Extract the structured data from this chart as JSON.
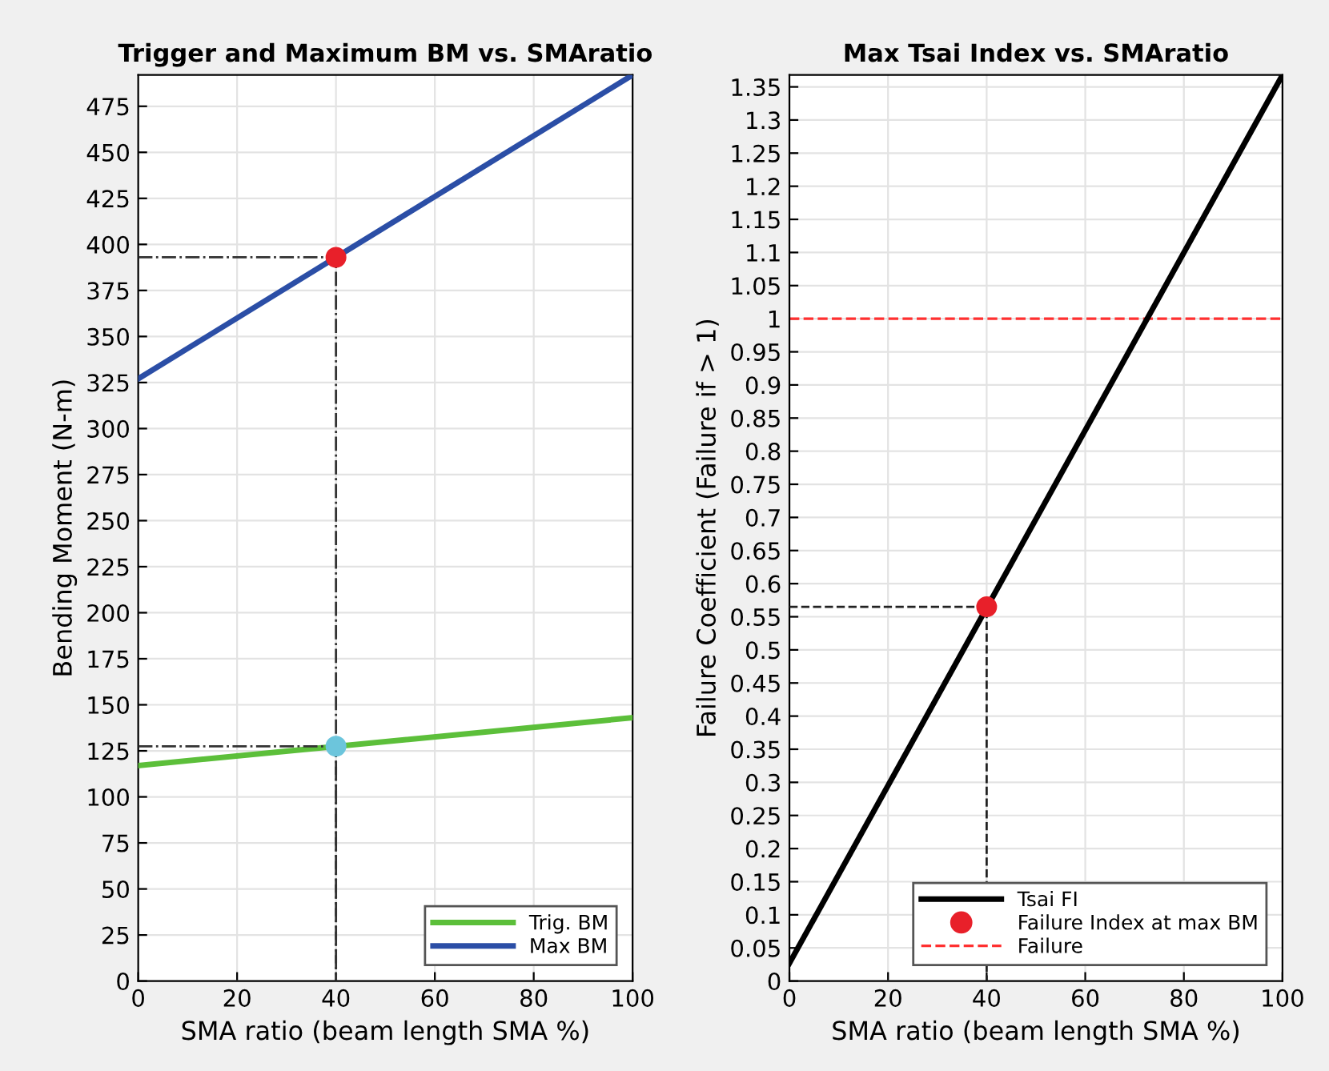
{
  "chart_data": [
    {
      "type": "line",
      "title": "Trigger and Maximum BM vs. SMAratio",
      "xlabel": "SMA ratio (beam length SMA %)",
      "ylabel": "Bending Moment (N-m)",
      "xlim": [
        0,
        100
      ],
      "xticks": [
        0,
        20,
        40,
        60,
        80,
        100
      ],
      "ylim": [
        0,
        492
      ],
      "yticks": [
        0,
        25,
        50,
        75,
        100,
        125,
        150,
        175,
        200,
        225,
        250,
        275,
        300,
        325,
        350,
        375,
        400,
        425,
        450,
        475
      ],
      "grid": true,
      "legend": "bottom right",
      "series": [
        {
          "name": "Trig. BM",
          "color": "#5cbf3a",
          "x": [
            0,
            100
          ],
          "values": [
            117,
            143
          ]
        },
        {
          "name": "Max BM",
          "color": "#2b4ea6",
          "x": [
            0,
            100
          ],
          "values": [
            327,
            492
          ]
        },
        {
          "type": "line",
          "color": "#333333",
          "line_style": "dashdot",
          "x": [
            0,
            40,
            40
          ],
          "values": [
            393,
            393,
            0
          ]
        },
        {
          "type": "line",
          "color": "#333333",
          "line_style": "dashdot",
          "x": [
            0,
            40,
            40
          ],
          "values": [
            127.5,
            127.5,
            0
          ]
        },
        {
          "type": "scatter",
          "color": "#e8202a",
          "marker": "circle",
          "x": [
            40
          ],
          "values": [
            393
          ]
        },
        {
          "type": "scatter",
          "color": "#6cc5dc",
          "marker": "circle",
          "x": [
            40
          ],
          "values": [
            127.5
          ]
        }
      ]
    },
    {
      "type": "line",
      "title": "Max Tsai Index vs. SMAratio",
      "xlabel": "SMA ratio (beam length SMA %)",
      "ylabel": "Failure Coefficient (Failure if > 1)",
      "xlim": [
        0,
        100
      ],
      "xticks": [
        0,
        20,
        40,
        60,
        80,
        100
      ],
      "ylim": [
        0,
        1.368
      ],
      "yticks": [
        0,
        0.05,
        0.1,
        0.15,
        0.2,
        0.25,
        0.3,
        0.35,
        0.4,
        0.45,
        0.5,
        0.55,
        0.6,
        0.65,
        0.7,
        0.75,
        0.8,
        0.85,
        0.9,
        0.95,
        1,
        1.05,
        1.1,
        1.15,
        1.2,
        1.25,
        1.3,
        1.35
      ],
      "grid": true,
      "legend": "bottom right",
      "ref_lines": [
        {
          "axis": "y",
          "value": 1,
          "label": "Failure",
          "color": "#ff3030",
          "line_style": "dashed"
        }
      ],
      "series": [
        {
          "name": "Tsai FI",
          "color": "#000000",
          "x": [
            0,
            100
          ],
          "values": [
            0.027,
            1.368
          ]
        },
        {
          "type": "line",
          "color": "#222222",
          "line_style": "dashed",
          "x": [
            0,
            40,
            40
          ],
          "values": [
            0.565,
            0.565,
            0
          ]
        },
        {
          "name": "Failure Index at max BM",
          "type": "scatter",
          "color": "#e8202a",
          "marker": "circle",
          "x": [
            40
          ],
          "values": [
            0.565
          ]
        }
      ]
    }
  ]
}
